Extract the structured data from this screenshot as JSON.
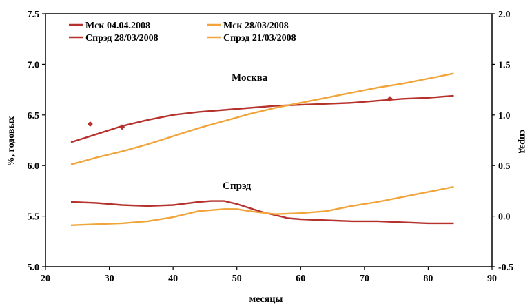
{
  "chart_data": {
    "type": "line",
    "xlabel": "месяцы",
    "ylabel": "%, годовых",
    "y2label": "спрэд",
    "xlim": [
      20,
      90
    ],
    "ylim": [
      5.0,
      7.5
    ],
    "y2lim": [
      -0.5,
      2.0
    ],
    "x_ticks": [
      "20",
      "30",
      "40",
      "50",
      "60",
      "70",
      "80",
      "90"
    ],
    "y_ticks": [
      "5.0",
      "5.5",
      "6.0",
      "6.5",
      "7.0",
      "7.5"
    ],
    "y2_ticks": [
      "-0.5",
      "0.0",
      "0.5",
      "1.0",
      "1.5",
      "2.0"
    ],
    "grid": false,
    "legend_position": "top-left",
    "colors": {
      "dark_red": "#b5312c",
      "orange": "#f0a43a",
      "axis": "#000000"
    },
    "annotations": [
      {
        "text": "Москва",
        "x": 52,
        "y": 6.84,
        "axis": "left"
      },
      {
        "text": "Спрэд",
        "x": 50,
        "y": 0.27,
        "axis": "right"
      }
    ],
    "series": [
      {
        "name": "Мск 04.04.2008",
        "color": "#b5312c",
        "axis": "left",
        "style": "line",
        "x": [
          24,
          28,
          32,
          36,
          40,
          44,
          48,
          52,
          56,
          60,
          64,
          68,
          72,
          76,
          80,
          84
        ],
        "y": [
          6.23,
          6.31,
          6.39,
          6.45,
          6.5,
          6.53,
          6.55,
          6.57,
          6.59,
          6.6,
          6.61,
          6.62,
          6.64,
          6.66,
          6.67,
          6.69
        ]
      },
      {
        "name": "Мск 28/03/2008",
        "color": "#f0a43a",
        "axis": "left",
        "style": "line",
        "x": [
          24,
          28,
          32,
          36,
          40,
          44,
          48,
          52,
          56,
          60,
          64,
          68,
          72,
          76,
          80,
          84
        ],
        "y": [
          6.01,
          6.08,
          6.14,
          6.21,
          6.29,
          6.37,
          6.44,
          6.51,
          6.57,
          6.62,
          6.67,
          6.72,
          6.77,
          6.81,
          6.86,
          6.91
        ]
      },
      {
        "name": "Спрэд 28/03/2008",
        "color": "#b5312c",
        "axis": "right",
        "style": "line",
        "x": [
          24,
          28,
          32,
          36,
          40,
          44,
          46,
          48,
          50,
          52,
          54,
          56,
          58,
          60,
          64,
          68,
          72,
          76,
          80,
          84
        ],
        "y": [
          0.14,
          0.13,
          0.11,
          0.1,
          0.11,
          0.14,
          0.15,
          0.15,
          0.12,
          0.08,
          0.04,
          0.01,
          -0.02,
          -0.03,
          -0.04,
          -0.05,
          -0.05,
          -0.06,
          -0.07,
          -0.07
        ]
      },
      {
        "name": "Спрэд 21/03/2008",
        "color": "#f0a43a",
        "axis": "right",
        "style": "line",
        "x": [
          24,
          28,
          32,
          36,
          40,
          44,
          48,
          50,
          52,
          56,
          60,
          64,
          68,
          72,
          76,
          80,
          84
        ],
        "y": [
          -0.09,
          -0.08,
          -0.07,
          -0.05,
          -0.01,
          0.05,
          0.07,
          0.07,
          0.05,
          0.02,
          0.03,
          0.05,
          0.1,
          0.14,
          0.19,
          0.24,
          0.29
        ]
      },
      {
        "name": "",
        "color": "#b5312c",
        "axis": "left",
        "style": "points",
        "x": [
          27,
          32,
          74
        ],
        "y": [
          6.41,
          6.38,
          6.66
        ]
      }
    ]
  }
}
